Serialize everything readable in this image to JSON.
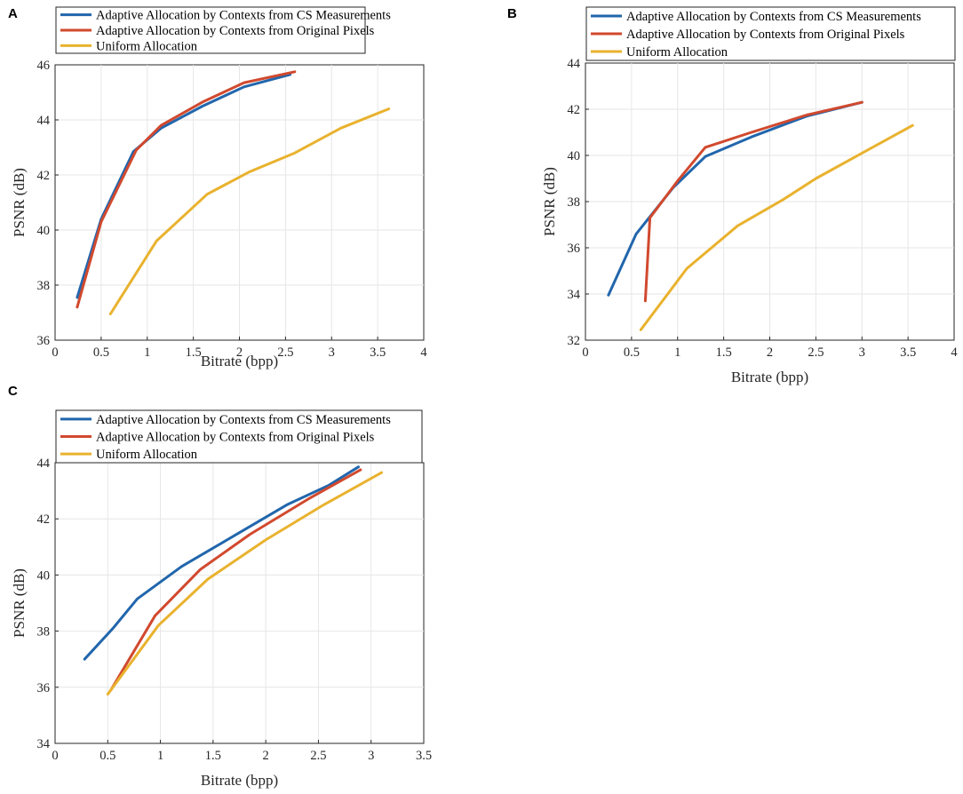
{
  "figure": {
    "panels": [
      "A",
      "B",
      "C"
    ]
  },
  "colors": {
    "cs_measurements": "#2166ac",
    "original_pixels": "#d1492e",
    "uniform": "#e9b22e"
  },
  "chart_data": [
    {
      "panel": "A",
      "type": "line",
      "xlabel": "Bitrate (bpp)",
      "ylabel": "PSNR (dB)",
      "xlim": [
        0,
        4
      ],
      "ylim": [
        36,
        46
      ],
      "xticks": [
        0,
        0.5,
        1,
        1.5,
        2,
        2.5,
        3,
        3.5,
        4
      ],
      "yticks": [
        36,
        38,
        40,
        42,
        44,
        46
      ],
      "xtick_labels": [
        "0",
        "0.5",
        "1",
        "1.5",
        "2",
        "2.5",
        "3",
        "3.5",
        "4"
      ],
      "ytick_labels": [
        "36",
        "38",
        "40",
        "42",
        "44",
        "46"
      ],
      "grid": true,
      "legend_position": "top-left",
      "series": [
        {
          "name": "Adaptive Allocation by Contexts from CS Measurements",
          "color_key": "cs_measurements",
          "points": [
            [
              0.24,
              37.55
            ],
            [
              0.5,
              40.4
            ],
            [
              0.85,
              42.85
            ],
            [
              1.15,
              43.7
            ],
            [
              1.6,
              44.5
            ],
            [
              2.05,
              45.2
            ],
            [
              2.55,
              45.65
            ]
          ]
        },
        {
          "name": "Adaptive Allocation by Contexts from Original Pixels",
          "color_key": "original_pixels",
          "points": [
            [
              0.24,
              37.2
            ],
            [
              0.5,
              40.3
            ],
            [
              0.88,
              42.9
            ],
            [
              1.15,
              43.8
            ],
            [
              1.6,
              44.65
            ],
            [
              2.05,
              45.35
            ],
            [
              2.6,
              45.75
            ]
          ]
        },
        {
          "name": "Uniform Allocation",
          "color_key": "uniform",
          "points": [
            [
              0.6,
              36.95
            ],
            [
              1.1,
              39.6
            ],
            [
              1.65,
              41.3
            ],
            [
              2.1,
              42.1
            ],
            [
              2.6,
              42.8
            ],
            [
              3.1,
              43.7
            ],
            [
              3.62,
              44.4
            ]
          ]
        }
      ]
    },
    {
      "panel": "B",
      "type": "line",
      "xlabel": "Bitrate (bpp)",
      "ylabel": "PSNR (dB)",
      "xlim": [
        0,
        4
      ],
      "ylim": [
        32,
        44
      ],
      "xticks": [
        0,
        0.5,
        1,
        1.5,
        2,
        2.5,
        3,
        3.5,
        4
      ],
      "yticks": [
        32,
        34,
        36,
        38,
        40,
        42,
        44
      ],
      "xtick_labels": [
        "0",
        "0.5",
        "1",
        "1.5",
        "2",
        "2.5",
        "3",
        "3.5",
        "4"
      ],
      "ytick_labels": [
        "32",
        "34",
        "36",
        "38",
        "40",
        "42",
        "44"
      ],
      "grid": true,
      "legend_position": "top-left",
      "series": [
        {
          "name": "Adaptive Allocation by Contexts from CS Measurements",
          "color_key": "cs_measurements",
          "points": [
            [
              0.25,
              33.95
            ],
            [
              0.55,
              36.6
            ],
            [
              0.95,
              38.6
            ],
            [
              1.3,
              39.95
            ],
            [
              1.8,
              40.8
            ],
            [
              2.4,
              41.7
            ],
            [
              3.0,
              42.3
            ]
          ]
        },
        {
          "name": "Adaptive Allocation by Contexts from Original Pixels",
          "color_key": "original_pixels",
          "points": [
            [
              0.65,
              33.7
            ],
            [
              0.7,
              37.3
            ],
            [
              1.0,
              38.9
            ],
            [
              1.3,
              40.35
            ],
            [
              1.8,
              41.0
            ],
            [
              2.4,
              41.75
            ],
            [
              3.0,
              42.3
            ]
          ]
        },
        {
          "name": "Uniform Allocation",
          "color_key": "uniform",
          "points": [
            [
              0.6,
              32.45
            ],
            [
              1.1,
              35.1
            ],
            [
              1.65,
              36.95
            ],
            [
              2.15,
              38.1
            ],
            [
              2.5,
              39.0
            ],
            [
              3.0,
              40.1
            ],
            [
              3.55,
              41.3
            ]
          ]
        }
      ]
    },
    {
      "panel": "C",
      "type": "line",
      "xlabel": "Bitrate (bpp)",
      "ylabel": "PSNR (dB)",
      "xlim": [
        0,
        3.5
      ],
      "ylim": [
        34,
        44
      ],
      "xticks": [
        0,
        0.5,
        1,
        1.5,
        2,
        2.5,
        3,
        3.5
      ],
      "yticks": [
        34,
        36,
        38,
        40,
        42,
        44
      ],
      "xtick_labels": [
        "0",
        "0.5",
        "1",
        "1.5",
        "2",
        "2.5",
        "3",
        "3.5"
      ],
      "ytick_labels": [
        "34",
        "36",
        "38",
        "40",
        "42",
        "44"
      ],
      "grid": true,
      "legend_position": "top-left",
      "series": [
        {
          "name": "Adaptive Allocation by Contexts from CS Measurements",
          "color_key": "cs_measurements",
          "points": [
            [
              0.28,
              37.0
            ],
            [
              0.55,
              38.1
            ],
            [
              0.78,
              39.15
            ],
            [
              1.2,
              40.3
            ],
            [
              1.7,
              41.4
            ],
            [
              2.2,
              42.5
            ],
            [
              2.6,
              43.2
            ],
            [
              2.88,
              43.85
            ]
          ]
        },
        {
          "name": "Adaptive Allocation by Contexts from Original Pixels",
          "color_key": "original_pixels",
          "points": [
            [
              0.53,
              35.9
            ],
            [
              0.95,
              38.55
            ],
            [
              1.38,
              40.2
            ],
            [
              1.85,
              41.45
            ],
            [
              2.4,
              42.7
            ],
            [
              2.9,
              43.75
            ]
          ]
        },
        {
          "name": "Uniform Allocation",
          "color_key": "uniform",
          "points": [
            [
              0.5,
              35.75
            ],
            [
              0.98,
              38.2
            ],
            [
              1.45,
              39.85
            ],
            [
              2.0,
              41.25
            ],
            [
              2.55,
              42.5
            ],
            [
              3.1,
              43.65
            ]
          ]
        }
      ]
    }
  ]
}
